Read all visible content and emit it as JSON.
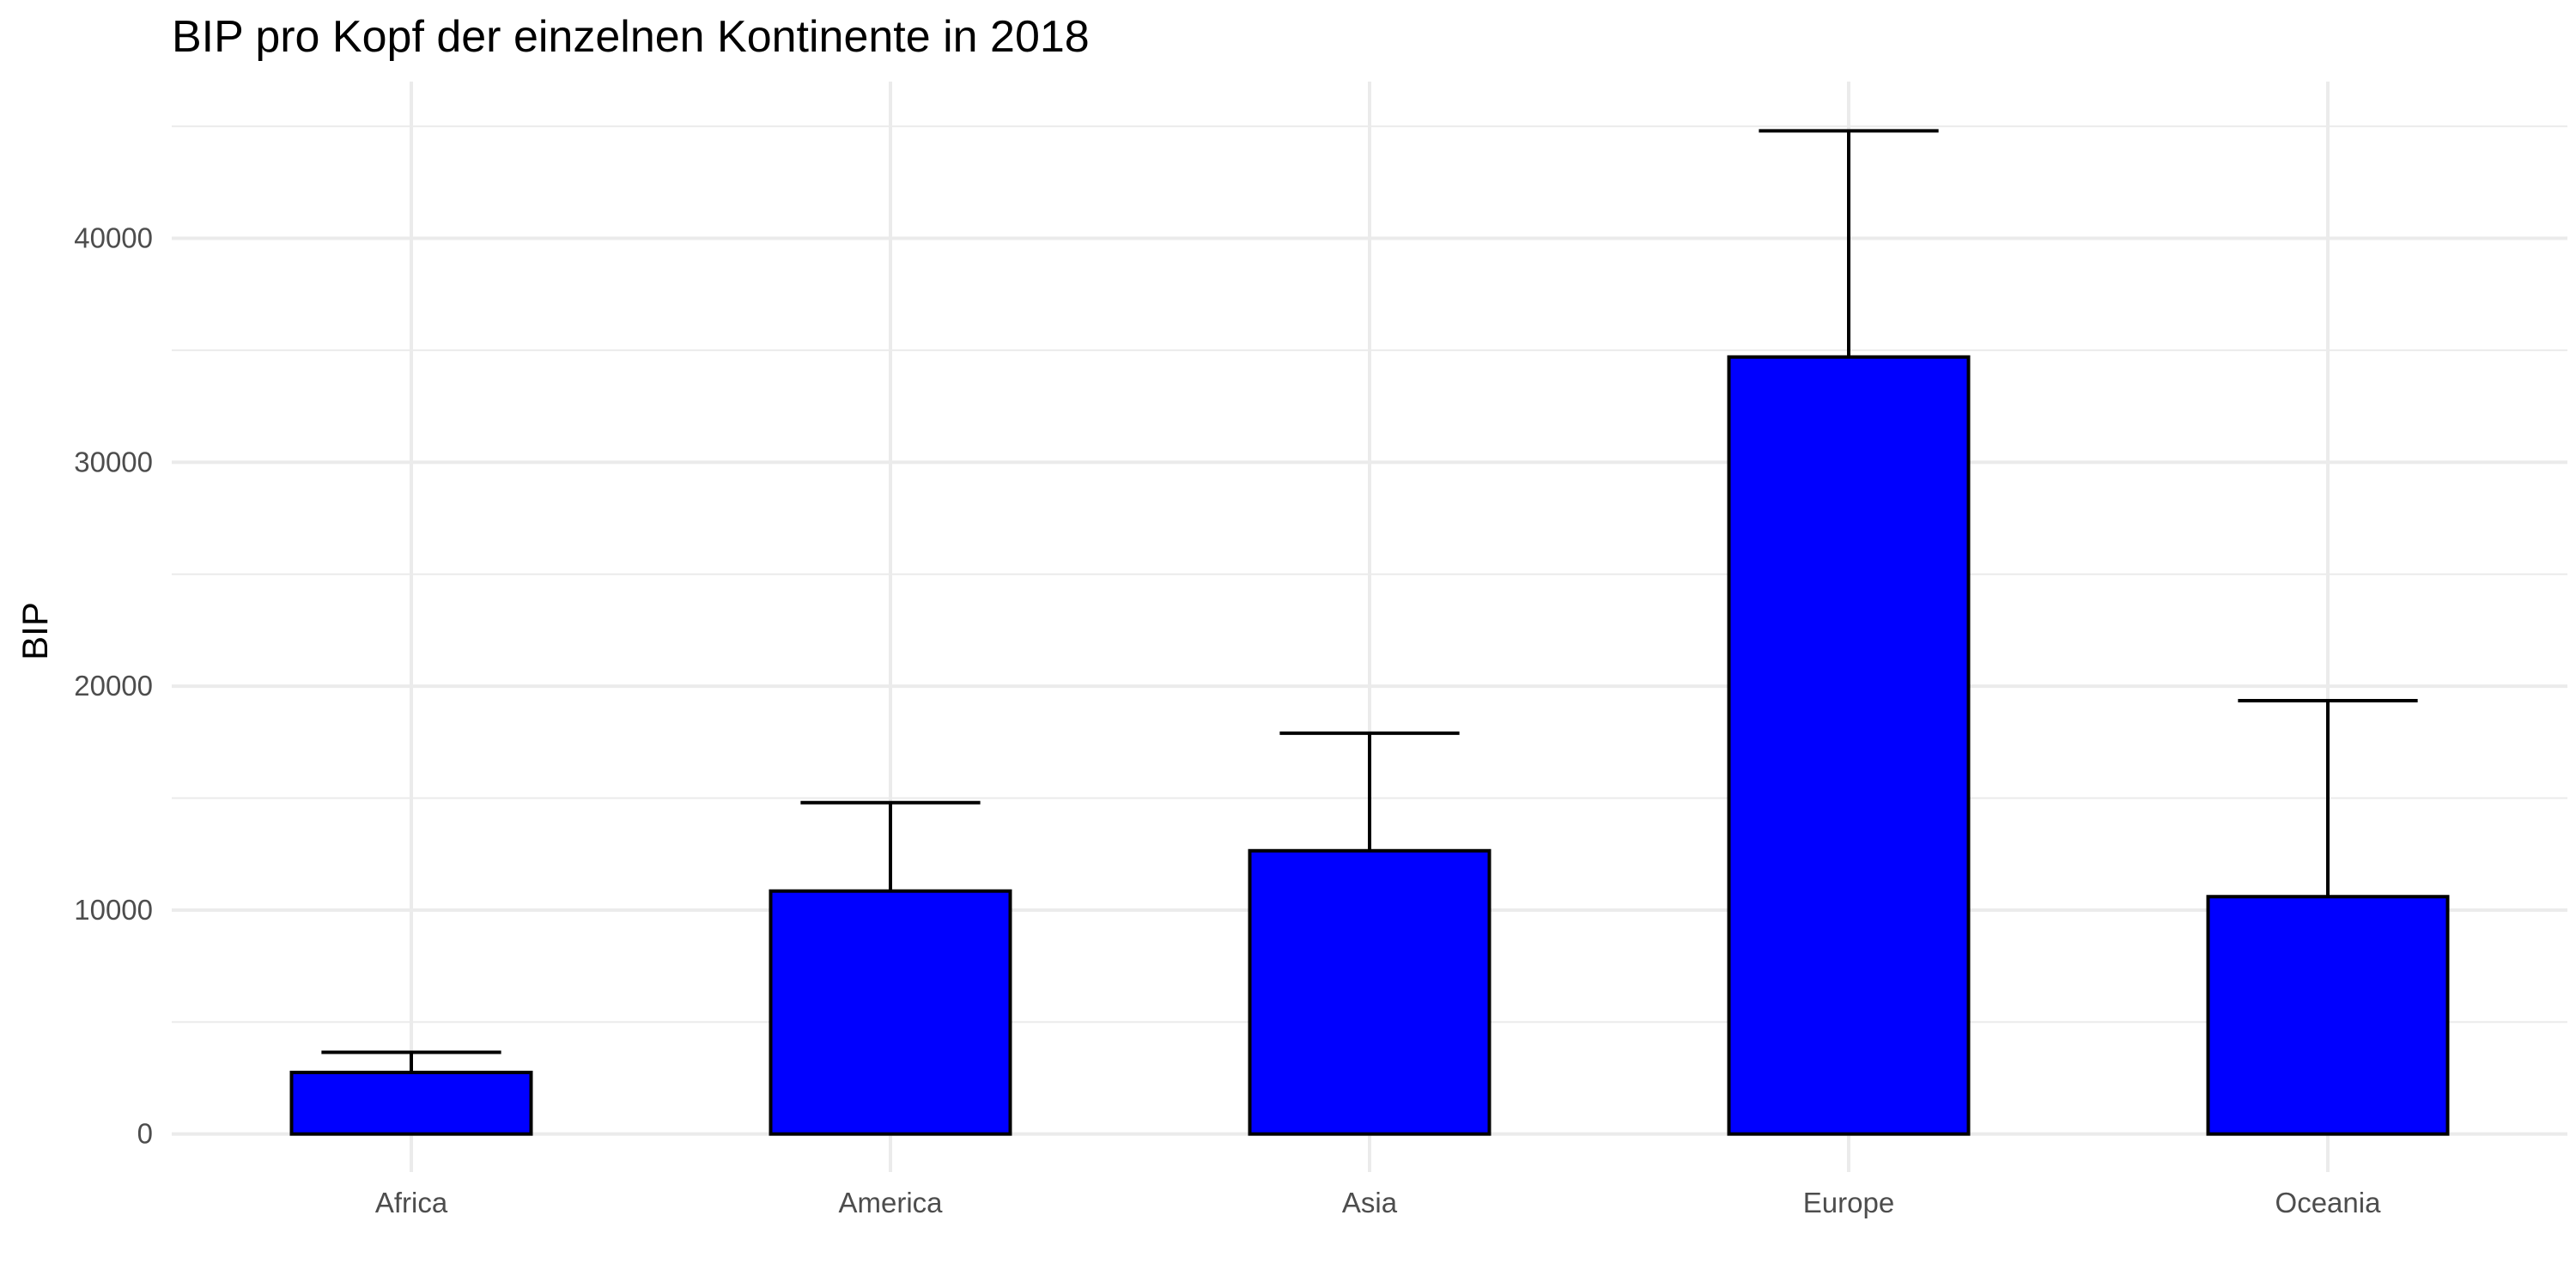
{
  "chart_data": {
    "type": "bar",
    "title": "BIP pro Kopf der einzelnen Kontinente in 2018",
    "xlabel": "",
    "ylabel": "BIP",
    "categories": [
      "Africa",
      "America",
      "Asia",
      "Europe",
      "Oceania"
    ],
    "values": [
      2750,
      10850,
      12650,
      34700,
      10600
    ],
    "error_upper": [
      3650,
      14800,
      17900,
      44800,
      19350
    ],
    "ylim": [
      -1700,
      47000
    ],
    "yticks": [
      0,
      10000,
      20000,
      30000,
      40000
    ],
    "ytick_labels": [
      "0",
      "10000",
      "20000",
      "30000",
      "40000"
    ],
    "grid": true,
    "legend": "none",
    "colors": {
      "bar_fill": "#0000ff",
      "bar_outline": "#000000",
      "grid": "#ebebeb",
      "background": "#ffffff"
    }
  }
}
